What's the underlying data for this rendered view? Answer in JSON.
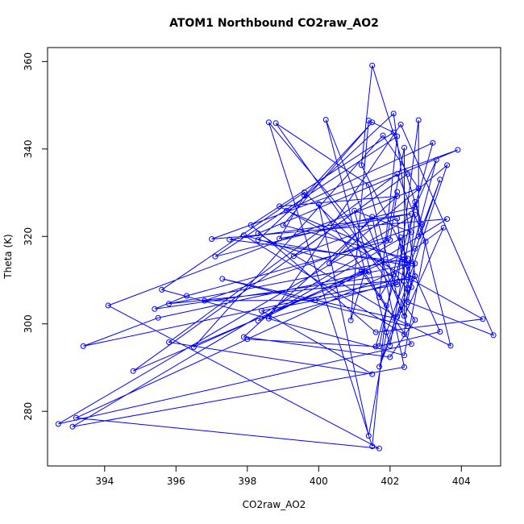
{
  "chart_data": {
    "type": "line",
    "title": "ATOM1 Northbound CO2raw_AO2",
    "xlabel": "CO2raw_AO2",
    "ylabel": "Theta (K)",
    "xlim": [
      392.4,
      405.1
    ],
    "ylim": [
      267.5,
      363.2
    ],
    "xticks": [
      394,
      396,
      398,
      400,
      402,
      404
    ],
    "yticks": [
      280,
      300,
      320,
      340,
      360
    ],
    "grid": false,
    "legend": "none",
    "series_color": "#0000ff",
    "marker": "open-circle",
    "x": [
      398.0,
      401.6,
      403.2,
      399.1,
      402.6,
      395.5,
      393.4,
      402.7,
      402.1,
      398.3,
      402.5,
      393.2,
      401.7,
      394.1,
      402.8,
      401.8,
      396.5,
      402.7,
      403.5,
      402.4,
      402.4,
      401.9,
      393.1,
      402.4,
      401.5,
      400.3,
      403.6,
      401.7,
      402.7,
      403.4,
      401.7,
      402.3,
      402.6,
      395.8,
      402.4,
      402.6,
      402.3,
      401.4,
      398.8,
      402.7,
      402.0,
      397.9,
      402.2,
      398.9,
      404.6,
      401.6,
      398.1,
      402.1,
      401.4,
      400.9,
      401.3,
      400.2,
      402.5,
      397.3,
      402.1,
      403.7,
      402.7,
      402.0,
      401.0,
      402.6,
      398.3,
      401.2,
      402.6,
      392.7,
      402.7,
      402.5,
      402.2,
      398.3,
      403.9,
      397.0,
      403.6,
      399.9,
      396.8,
      402.9,
      401.5,
      401.2,
      402.5,
      399.0,
      401.5,
      399.6,
      398.9,
      402.6,
      397.5,
      402.7,
      402.5,
      404.9,
      402.3,
      398.6,
      402.2,
      399.6,
      395.6,
      402.4,
      403.0,
      402.2,
      395.8,
      401.5,
      398.4,
      402.2,
      402.8,
      402.8,
      403.4,
      401.9,
      401.4,
      400.0,
      401.9,
      401.5,
      398.6,
      402.5,
      402.4,
      397.9,
      401.4,
      394.8,
      402.5,
      399.3,
      402.2,
      402.4,
      403.3,
      402.7,
      397.1,
      402.2,
      401.7,
      402.1,
      395.4,
      396.3,
      402.0,
      402.2
    ],
    "y": [
      296.5,
      294.8,
      341.4,
      325.9,
      313.8,
      301.4,
      294.9,
      310.9,
      348.1,
      319.2,
      313.4,
      278.5,
      271.5,
      304.2,
      331.0,
      343.1,
      294.7,
      317.2,
      322.0,
      301.8,
      340.3,
      319.0,
      276.5,
      290.1,
      324.5,
      313.8,
      336.3,
      290.2,
      310.9,
      298.2,
      294.9,
      319.8,
      310.3,
      304.6,
      314.8,
      308.4,
      303.2,
      331.8,
      345.9,
      300.9,
      292.4,
      297.0,
      329.2,
      326.9,
      301.1,
      298.1,
      322.6,
      343.8,
      346.5,
      300.8,
      312.1,
      346.7,
      299.5,
      310.3,
      301.4,
      295.0,
      327.9,
      295.0,
      325.9,
      321.0,
      300.7,
      312.1,
      295.4,
      277.1,
      325.0,
      308.2,
      301.6,
      320.7,
      339.8,
      319.4,
      324.0,
      305.4,
      305.3,
      322.7,
      359.1,
      336.3,
      314.9,
      322.6,
      346.1,
      329.3,
      319.5,
      325.2,
      319.3,
      313.8,
      305.0,
      297.4,
      345.6,
      301.2,
      309.6,
      330.1,
      307.8,
      292.8,
      318.8,
      334.3,
      295.8,
      288.5,
      303.0,
      309.0,
      346.6,
      320.0,
      333.0,
      298.1,
      274.4,
      327.4,
      304.2,
      272.0,
      346.1,
      307.9,
      297.6,
      320.3,
      311.9,
      289.2,
      334.3,
      315.5,
      324.1,
      309.8,
      337.5,
      326.7,
      315.4,
      342.9,
      306.1,
      311.3,
      303.4,
      306.4,
      319.2,
      330.2
    ]
  }
}
